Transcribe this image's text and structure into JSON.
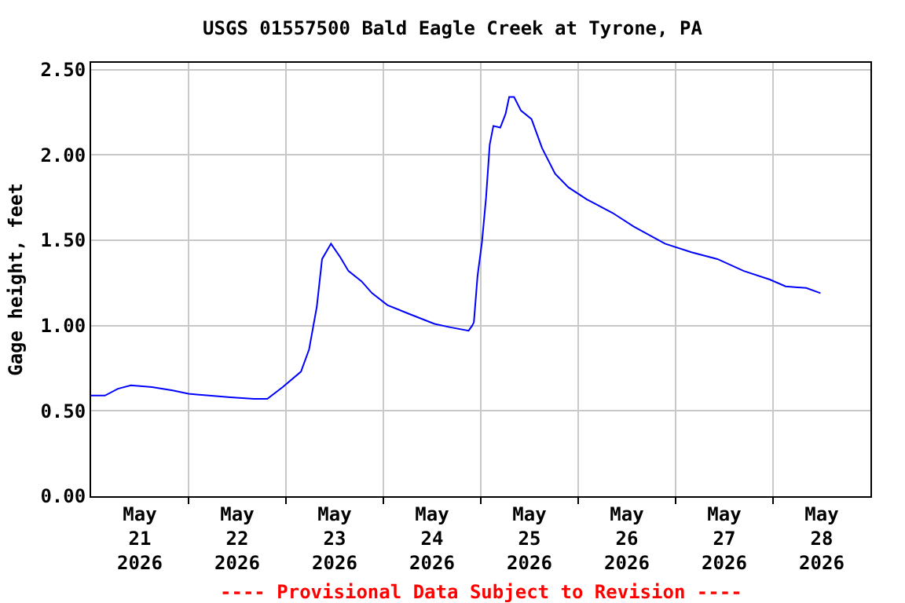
{
  "chart_data": {
    "type": "line",
    "title": "USGS 01557500 Bald Eagle Creek at Tyrone, PA",
    "ylabel": "Gage height, feet",
    "annotations": [
      "---- Provisional Data Subject to Revision ----"
    ],
    "x": [
      "2026-05-21T00:00",
      "2026-05-21T03:24",
      "2026-05-21T06:36",
      "2026-05-21T09:48",
      "2026-05-21T15:00",
      "2026-05-21T20:06",
      "2026-05-22T00:00",
      "2026-05-22T10:18",
      "2026-05-22T16:06",
      "2026-05-22T19:24",
      "2026-05-22T23:12",
      "2026-05-23T03:42",
      "2026-05-23T05:42",
      "2026-05-23T07:36",
      "2026-05-23T08:54",
      "2026-05-23T11:06",
      "2026-05-23T13:24",
      "2026-05-23T15:24",
      "2026-05-23T18:36",
      "2026-05-23T21:12",
      "2026-05-24T01:00",
      "2026-05-24T06:12",
      "2026-05-24T12:36",
      "2026-05-24T16:30",
      "2026-05-24T21:00",
      "2026-05-24T21:54",
      "2026-05-24T22:18",
      "2026-05-24T23:12",
      "2026-05-25T00:18",
      "2026-05-25T01:18",
      "2026-05-25T02:12",
      "2026-05-25T03:06",
      "2026-05-25T04:48",
      "2026-05-25T06:06",
      "2026-05-25T07:00",
      "2026-05-25T08:12",
      "2026-05-25T09:54",
      "2026-05-25T12:30",
      "2026-05-25T15:06",
      "2026-05-25T18:18",
      "2026-05-25T21:36",
      "2026-05-26T02:06",
      "2026-05-26T08:30",
      "2026-05-26T13:42",
      "2026-05-26T21:24",
      "2026-05-27T03:54",
      "2026-05-27T10:18",
      "2026-05-27T16:48",
      "2026-05-27T23:12",
      "2026-05-28T03:06",
      "2026-05-28T08:12",
      "2026-05-28T11:42"
    ],
    "series": [
      {
        "color": "#0000ff",
        "values": [
          0.59,
          0.59,
          0.63,
          0.65,
          0.64,
          0.62,
          0.6,
          0.58,
          0.57,
          0.57,
          0.64,
          0.73,
          0.86,
          1.11,
          1.39,
          1.48,
          1.4,
          1.32,
          1.26,
          1.19,
          1.12,
          1.07,
          1.01,
          0.99,
          0.97,
          1.0,
          1.02,
          1.29,
          1.49,
          1.75,
          2.06,
          2.17,
          2.16,
          2.24,
          2.34,
          2.34,
          2.26,
          2.21,
          2.04,
          1.89,
          1.81,
          1.74,
          1.66,
          1.58,
          1.48,
          1.43,
          1.39,
          1.32,
          1.27,
          1.23,
          1.22,
          1.19
        ]
      }
    ],
    "xlim": [
      "2026-05-21T00:00",
      "2026-05-29T00:00"
    ],
    "xticks": [
      {
        "value": "2026-05-21T12:00",
        "label": "May\n21\n2026"
      },
      {
        "value": "2026-05-22T00:00",
        "label": null
      },
      {
        "value": "2026-05-22T12:00",
        "label": "May\n22\n2026"
      },
      {
        "value": "2026-05-23T00:00",
        "label": null
      },
      {
        "value": "2026-05-23T12:00",
        "label": "May\n23\n2026"
      },
      {
        "value": "2026-05-24T00:00",
        "label": null
      },
      {
        "value": "2026-05-24T12:00",
        "label": "May\n24\n2026"
      },
      {
        "value": "2026-05-25T00:00",
        "label": null
      },
      {
        "value": "2026-05-25T12:00",
        "label": "May\n25\n2026"
      },
      {
        "value": "2026-05-26T00:00",
        "label": null
      },
      {
        "value": "2026-05-26T12:00",
        "label": "May\n26\n2026"
      },
      {
        "value": "2026-05-27T00:00",
        "label": null
      },
      {
        "value": "2026-05-27T12:00",
        "label": "May\n27\n2026"
      },
      {
        "value": "2026-05-28T00:00",
        "label": null
      },
      {
        "value": "2026-05-28T12:00",
        "label": "May\n28\n2026"
      }
    ],
    "ylim": [
      0,
      2.54
    ],
    "yticks": [
      {
        "value": 0,
        "label": "0.00"
      },
      {
        "value": 0.5,
        "label": "0.50"
      },
      {
        "value": 1,
        "label": "1.00"
      },
      {
        "value": 1.5,
        "label": "1.50"
      },
      {
        "value": 2,
        "label": "2.00"
      },
      {
        "value": 2.5,
        "label": "2.50"
      }
    ],
    "grid": true,
    "marker": "none",
    "line_style": "solid"
  }
}
